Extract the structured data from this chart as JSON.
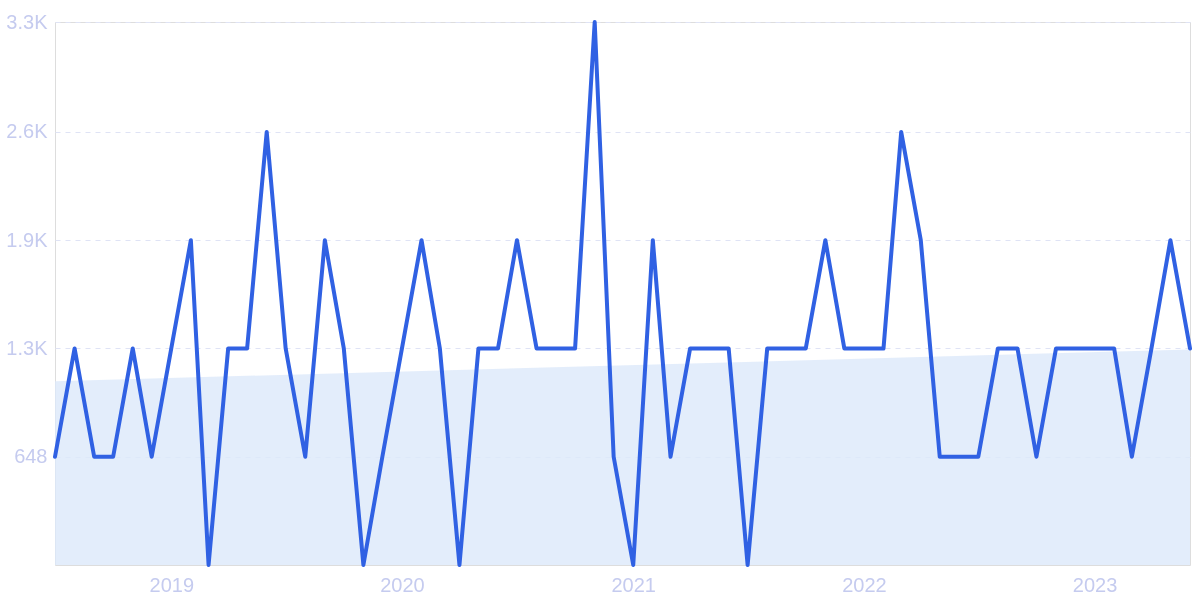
{
  "chart_data": {
    "type": "line",
    "x": [
      "2018-07",
      "2018-08",
      "2018-09",
      "2018-10",
      "2018-11",
      "2018-12",
      "2019-01",
      "2019-02",
      "2019-03",
      "2019-04",
      "2019-05",
      "2019-06",
      "2019-07",
      "2019-08",
      "2019-09",
      "2019-10",
      "2019-11",
      "2019-12",
      "2020-01",
      "2020-02",
      "2020-03",
      "2020-04",
      "2020-05",
      "2020-06",
      "2020-07",
      "2020-08",
      "2020-09",
      "2020-10",
      "2020-11",
      "2020-12",
      "2021-01",
      "2021-02",
      "2021-03",
      "2021-04",
      "2021-05",
      "2021-06",
      "2021-07",
      "2021-08",
      "2021-09",
      "2021-10",
      "2021-11",
      "2021-12",
      "2022-01",
      "2022-02",
      "2022-03",
      "2022-04",
      "2022-05",
      "2022-06",
      "2022-07",
      "2022-08",
      "2022-09",
      "2022-10",
      "2022-11",
      "2022-12",
      "2023-01",
      "2023-02",
      "2023-03",
      "2023-04",
      "2023-05",
      "2023-06"
    ],
    "series": [
      {
        "type": "area",
        "color": "#dce8fa",
        "x": [
          "2018-07",
          "2023-06"
        ],
        "values": [
          1100,
          1290
        ]
      },
      {
        "type": "line",
        "color": "#3061e3",
        "values": [
          648,
          1296,
          648,
          648,
          1296,
          648,
          1296,
          1944,
          0,
          1296,
          1296,
          2592,
          1296,
          648,
          1944,
          1296,
          0,
          648,
          1296,
          1944,
          1296,
          0,
          1296,
          1296,
          1944,
          1296,
          1296,
          1296,
          3250,
          648,
          0,
          1944,
          648,
          1296,
          1296,
          1296,
          0,
          1296,
          1296,
          1296,
          1944,
          1296,
          1296,
          1296,
          2592,
          1944,
          648,
          648,
          648,
          1296,
          1296,
          648,
          1296,
          1296,
          1296,
          1296,
          648,
          1296,
          1944,
          1296
        ]
      }
    ],
    "xlim": [
      "2018-07",
      "2023-06"
    ],
    "xticks": [
      "2019",
      "2020",
      "2021",
      "2022",
      "2023"
    ],
    "ylim": [
      0,
      3250
    ],
    "yticks": [
      648,
      {
        "value": 1296,
        "label": "1.3K"
      },
      {
        "value": 1944,
        "label": "1.9K"
      },
      {
        "value": 2592,
        "label": "2.6K"
      },
      {
        "value": 3250,
        "label": "3.3K"
      }
    ],
    "grid": "y",
    "marker": "none",
    "line_style": "solid"
  }
}
